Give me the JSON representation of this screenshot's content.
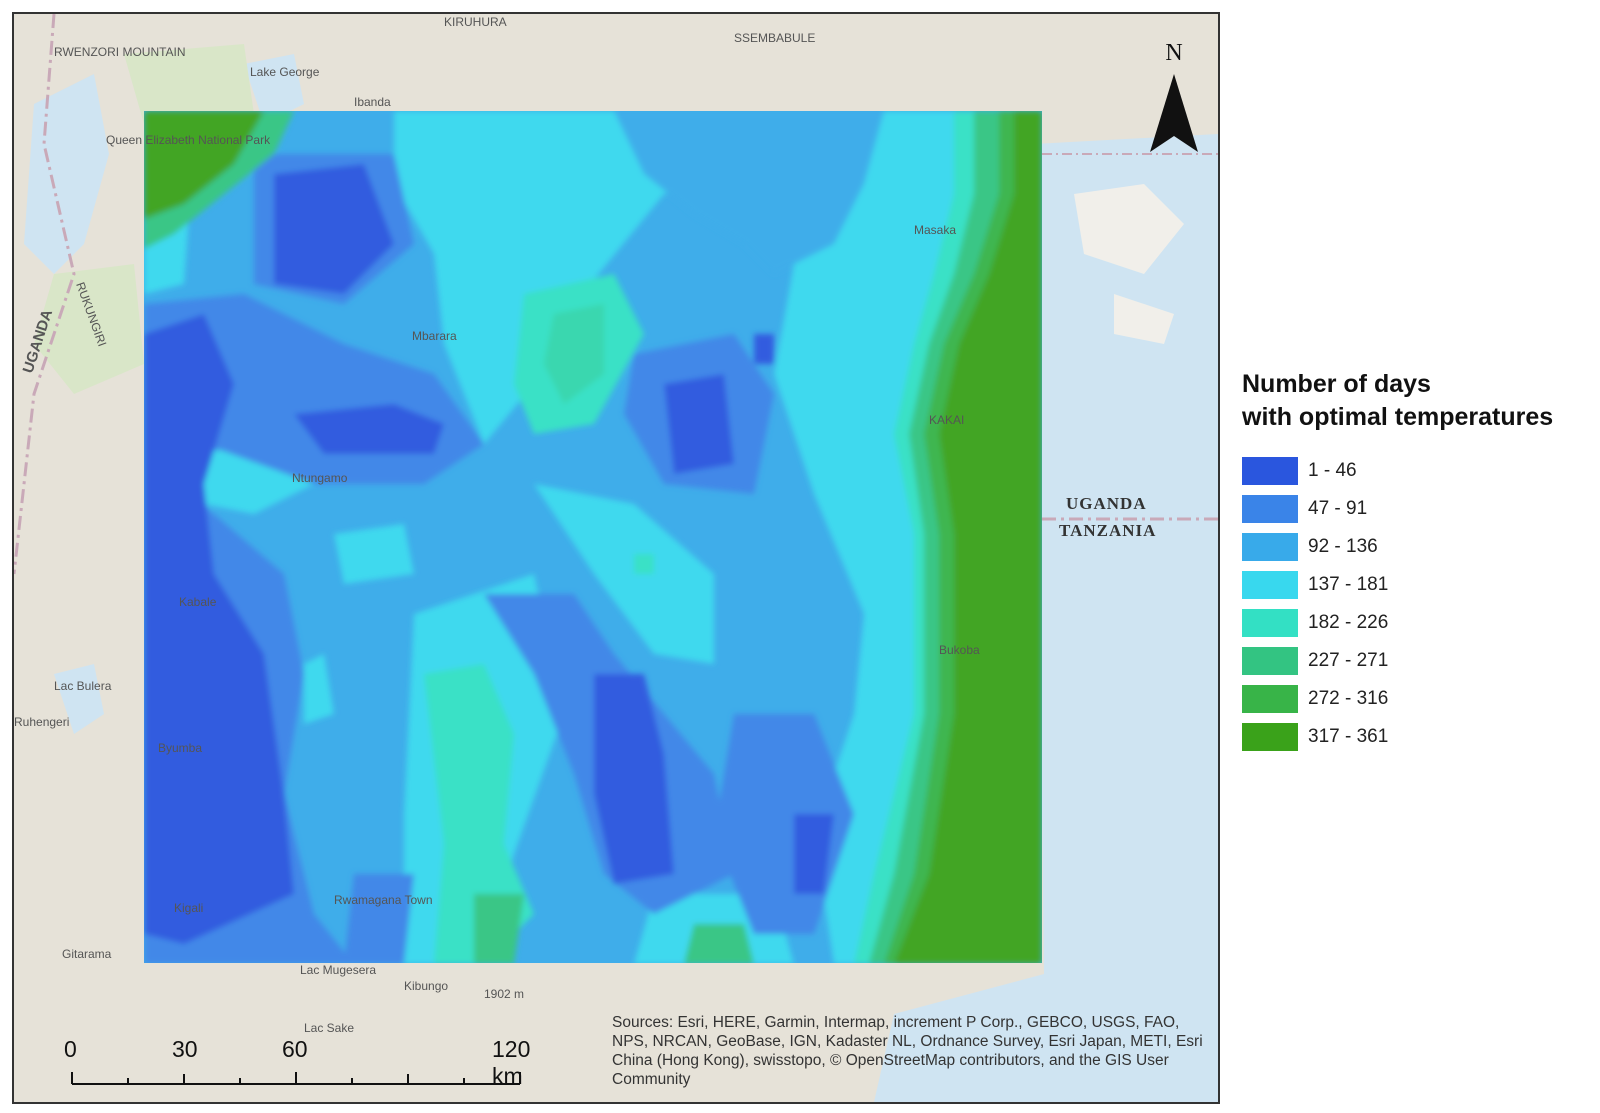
{
  "legend": {
    "title_line1": "Number of days",
    "title_line2": "with optimal temperatures",
    "classes": [
      {
        "label": "1 - 46",
        "color": "#2a56de"
      },
      {
        "label": "47 - 91",
        "color": "#3a84e8"
      },
      {
        "label": "92 - 136",
        "color": "#38aaea"
      },
      {
        "label": "137 - 181",
        "color": "#38d8ee"
      },
      {
        "label": "182 - 226",
        "color": "#33e0c4"
      },
      {
        "label": "227 - 271",
        "color": "#33c482"
      },
      {
        "label": "272 - 316",
        "color": "#38b448"
      },
      {
        "label": "317 - 361",
        "color": "#3aa21a"
      }
    ]
  },
  "scale_bar": {
    "labels": [
      "0",
      "30",
      "60",
      "120 km"
    ]
  },
  "north_arrow": {
    "label": "N"
  },
  "borders": {
    "north": "UGANDA",
    "south": "TANZANIA"
  },
  "sources_text": "Sources: Esri, HERE, Garmin, Intermap, increment P Corp., GEBCO, USGS, FAO, NPS, NRCAN, GeoBase, IGN, Kadaster NL, Ordnance Survey, Esri Japan, METI, Esri China (Hong Kong), swisstopo, © OpenStreetMap contributors, and the GIS User Community",
  "places": [
    {
      "name": "Queen Elizabeth National Park"
    },
    {
      "name": "RWENZORI MOUNTAIN"
    },
    {
      "name": "KIRUHURA"
    },
    {
      "name": "SSEMBABULE"
    },
    {
      "name": "Lake George"
    },
    {
      "name": "Ibanda"
    },
    {
      "name": "UGANDA"
    },
    {
      "name": "RUKUNGIRI"
    },
    {
      "name": "Mbarara"
    },
    {
      "name": "Ntungamo"
    },
    {
      "name": "Kabale"
    },
    {
      "name": "Lac Bulera"
    },
    {
      "name": "Ruhengeri"
    },
    {
      "name": "Byumba"
    },
    {
      "name": "Kigali"
    },
    {
      "name": "Gitarama"
    },
    {
      "name": "Lac Mugesera"
    },
    {
      "name": "Lac Sake"
    },
    {
      "name": "Kibungo"
    },
    {
      "name": "1902 m"
    },
    {
      "name": "Bukoba"
    },
    {
      "name": "Masaka"
    },
    {
      "name": "KAKAI"
    },
    {
      "name": "Rwamagana Town"
    }
  ]
}
